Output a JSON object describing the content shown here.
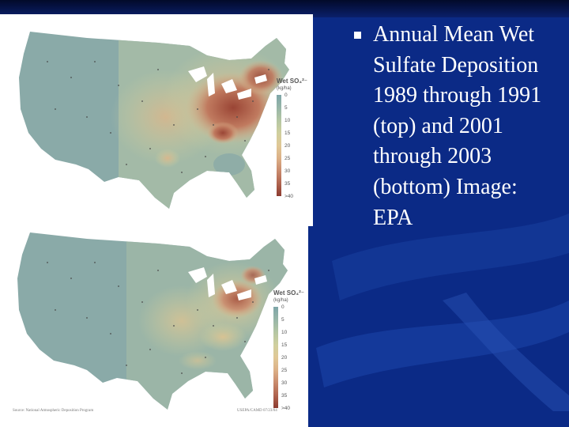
{
  "caption": "Annual Mean Wet Sulfate Deposition 1989 through 1991 (top) and 2001 through 2003 (bottom) Image: EPA",
  "maps": [
    {
      "period": "1989-1991",
      "legend_title": "Wet SO₄²⁻",
      "legend_unit": "(kg/ha)",
      "legend_ticks": [
        "0",
        "5",
        "10",
        "15",
        "20",
        "25",
        "30",
        "35",
        ">40"
      ]
    },
    {
      "period": "2001-2003",
      "legend_title": "Wet SO₄²⁻",
      "legend_unit": "(kg/ha)",
      "legend_ticks": [
        "0",
        "5",
        "10",
        "15",
        "20",
        "25",
        "30",
        "35",
        ">40"
      ],
      "source_credit": "Source: National Atmospheric Deposition Program",
      "agency_credit": "USEPA/CAMD 07/23/04"
    }
  ],
  "colors": {
    "background": "#0b2a86",
    "scale": [
      "#7ea5a8",
      "#97b5a8",
      "#b4c6a3",
      "#cfcf9e",
      "#e0c896",
      "#dcb087",
      "#c98a6d",
      "#b0644f",
      "#8c3b30"
    ]
  }
}
